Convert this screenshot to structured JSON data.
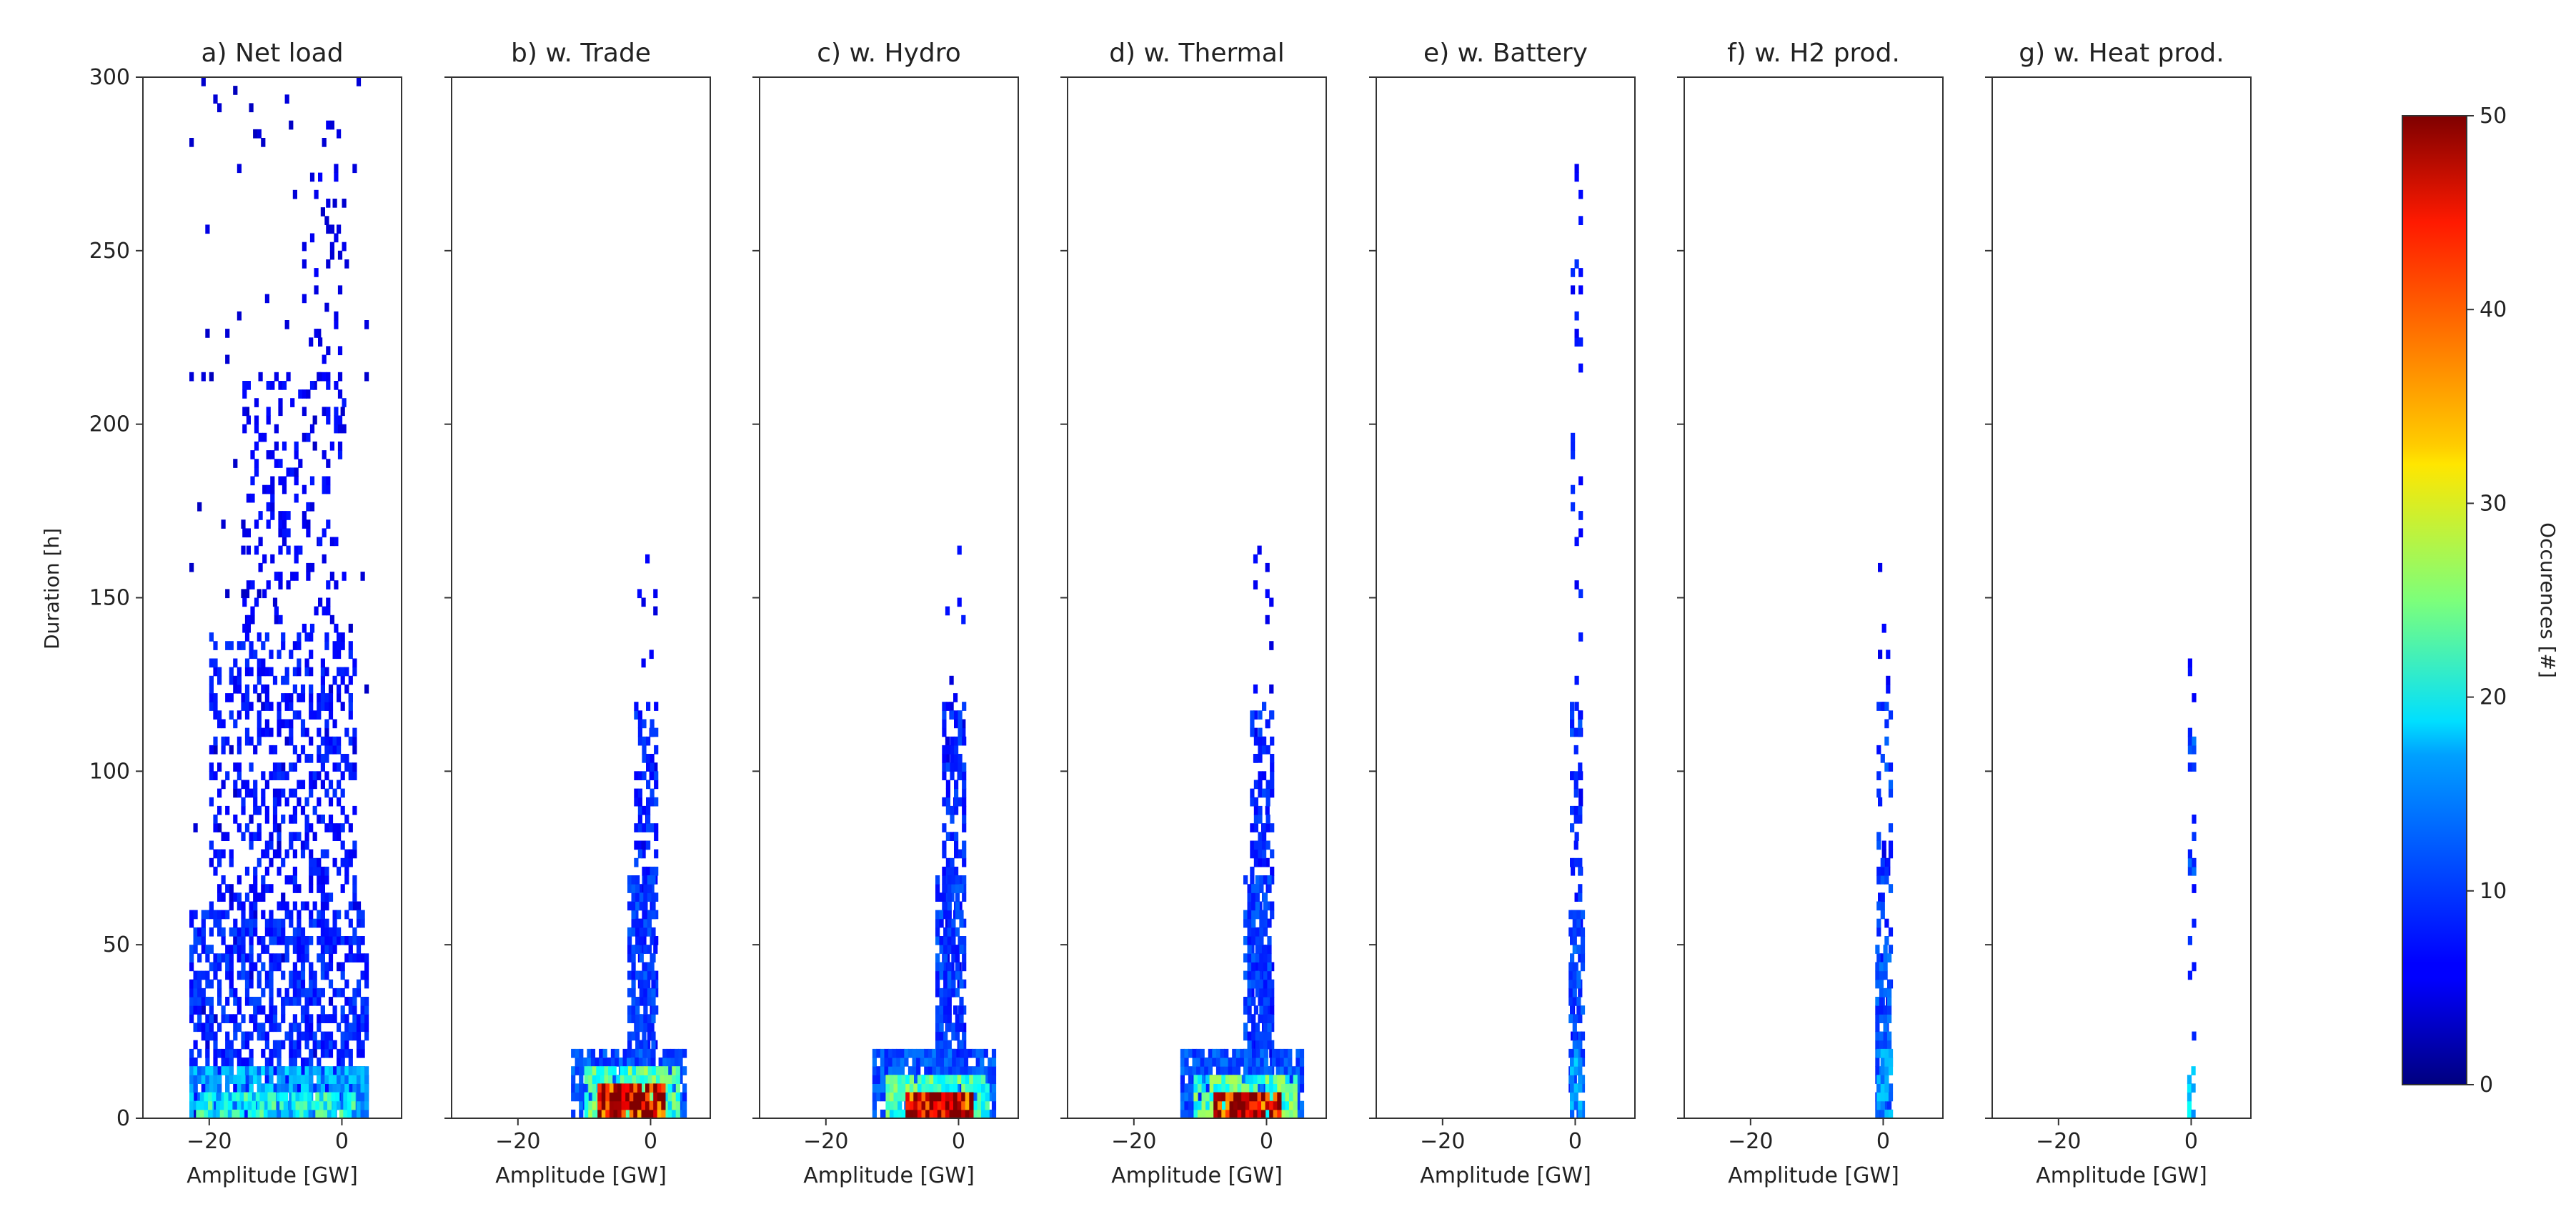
{
  "chart_data": {
    "type": "heatmap",
    "colormap": "jet",
    "x_range": [
      -30,
      9
    ],
    "y_range": [
      0,
      300
    ],
    "ylabel": "Duration [h]",
    "xlabel": "Amplitude [GW]",
    "x_ticks": [
      -20,
      0
    ],
    "y_ticks": [
      0,
      50,
      100,
      150,
      200,
      250,
      300
    ],
    "colorbar": {
      "label": "Occurences [#]",
      "range": [
        0,
        50
      ],
      "ticks": [
        0,
        10,
        20,
        30,
        40,
        50
      ]
    },
    "panels": [
      {
        "title": "a) Net load",
        "show_y_ticklabels": true,
        "regions": [
          {
            "x": [
              -23,
              4
            ],
            "y": [
              0,
              300
            ],
            "value": 4,
            "density": 0.02
          },
          {
            "x": [
              -23,
              4
            ],
            "y": [
              0,
              60
            ],
            "value": 8,
            "density": 0.55
          },
          {
            "x": [
              -20,
              2
            ],
            "y": [
              60,
              140
            ],
            "value": 7,
            "density": 0.38
          },
          {
            "x": [
              -15,
              0
            ],
            "y": [
              140,
              215
            ],
            "value": 6,
            "density": 0.2
          },
          {
            "x": [
              -6,
              0
            ],
            "y": [
              215,
              295
            ],
            "value": 5,
            "density": 0.1
          },
          {
            "x": [
              -23,
              4
            ],
            "y": [
              0,
              15
            ],
            "value": 14,
            "density": 0.85
          },
          {
            "x": [
              -22,
              2
            ],
            "y": [
              0,
              7
            ],
            "value": 20,
            "density": 0.8
          }
        ]
      },
      {
        "title": "b) w. Trade",
        "show_y_ticklabels": false,
        "regions": [
          {
            "x": [
              -2,
              1
            ],
            "y": [
              0,
              165
            ],
            "value": 6,
            "density": 0.1
          },
          {
            "x": [
              -2.5,
              1
            ],
            "y": [
              0,
              120
            ],
            "value": 8,
            "density": 0.5
          },
          {
            "x": [
              -3.5,
              0.5
            ],
            "y": [
              0,
              70
            ],
            "value": 9,
            "density": 0.7
          },
          {
            "x": [
              -12,
              5
            ],
            "y": [
              0,
              20
            ],
            "value": 10,
            "density": 0.85
          },
          {
            "x": [
              -10,
              4
            ],
            "y": [
              0,
              14
            ],
            "value": 22,
            "density": 0.9
          },
          {
            "x": [
              -8,
              2
            ],
            "y": [
              0,
              8
            ],
            "value": 46,
            "density": 0.95
          }
        ]
      },
      {
        "title": "c) w. Hydro",
        "show_y_ticklabels": false,
        "regions": [
          {
            "x": [
              -2,
              1
            ],
            "y": [
              0,
              165
            ],
            "value": 6,
            "density": 0.1
          },
          {
            "x": [
              -2.5,
              1
            ],
            "y": [
              0,
              120
            ],
            "value": 8,
            "density": 0.5
          },
          {
            "x": [
              -3.5,
              0.5
            ],
            "y": [
              0,
              70
            ],
            "value": 9,
            "density": 0.7
          },
          {
            "x": [
              -13,
              5
            ],
            "y": [
              0,
              18
            ],
            "value": 10,
            "density": 0.85
          },
          {
            "x": [
              -11,
              4
            ],
            "y": [
              0,
              12
            ],
            "value": 22,
            "density": 0.9
          },
          {
            "x": [
              -8,
              2
            ],
            "y": [
              0,
              7
            ],
            "value": 46,
            "density": 0.95
          }
        ]
      },
      {
        "title": "d) w. Thermal",
        "show_y_ticklabels": false,
        "regions": [
          {
            "x": [
              -2,
              1
            ],
            "y": [
              0,
              165
            ],
            "value": 6,
            "density": 0.1
          },
          {
            "x": [
              -2.5,
              1
            ],
            "y": [
              0,
              120
            ],
            "value": 8,
            "density": 0.5
          },
          {
            "x": [
              -3.5,
              0.5
            ],
            "y": [
              0,
              70
            ],
            "value": 9,
            "density": 0.7
          },
          {
            "x": [
              -13,
              5
            ],
            "y": [
              0,
              18
            ],
            "value": 10,
            "density": 0.85
          },
          {
            "x": [
              -11,
              4
            ],
            "y": [
              0,
              12
            ],
            "value": 22,
            "density": 0.9
          },
          {
            "x": [
              -8,
              2
            ],
            "y": [
              0,
              7
            ],
            "value": 46,
            "density": 0.95
          }
        ]
      },
      {
        "title": "e) w. Battery",
        "show_y_ticklabels": false,
        "regions": [
          {
            "x": [
              -0.7,
              0.7
            ],
            "y": [
              0,
              275
            ],
            "value": 7,
            "density": 0.12
          },
          {
            "x": [
              -0.8,
              0.8
            ],
            "y": [
              0,
              120
            ],
            "value": 9,
            "density": 0.35
          },
          {
            "x": [
              -1,
              1
            ],
            "y": [
              0,
              60
            ],
            "value": 10,
            "density": 0.6
          },
          {
            "x": [
              -0.8,
              0.8
            ],
            "y": [
              0,
              20
            ],
            "value": 14,
            "density": 0.8
          }
        ]
      },
      {
        "title": "f) w. H2 prod.",
        "show_y_ticklabels": false,
        "regions": [
          {
            "x": [
              -0.8,
              0.8
            ],
            "y": [
              0,
              168
            ],
            "value": 6,
            "density": 0.12
          },
          {
            "x": [
              -1,
              1
            ],
            "y": [
              0,
              120
            ],
            "value": 9,
            "density": 0.4
          },
          {
            "x": [
              -1.2,
              1
            ],
            "y": [
              0,
              50
            ],
            "value": 10,
            "density": 0.75
          },
          {
            "x": [
              -1,
              0.8
            ],
            "y": [
              0,
              18
            ],
            "value": 14,
            "density": 0.85
          }
        ]
      },
      {
        "title": "g) w. Heat prod.",
        "show_y_ticklabels": false,
        "regions": [
          {
            "x": [
              -0.5,
              0.5
            ],
            "y": [
              0,
              140
            ],
            "value": 8,
            "density": 0.1
          },
          {
            "x": [
              -0.5,
              0.5
            ],
            "y": [
              100,
              115
            ],
            "value": 10,
            "density": 0.7
          },
          {
            "x": [
              -0.5,
              0.5
            ],
            "y": [
              70,
              80
            ],
            "value": 10,
            "density": 0.6
          },
          {
            "x": [
              -0.6,
              0.6
            ],
            "y": [
              0,
              15
            ],
            "value": 16,
            "density": 0.6
          }
        ]
      }
    ]
  }
}
